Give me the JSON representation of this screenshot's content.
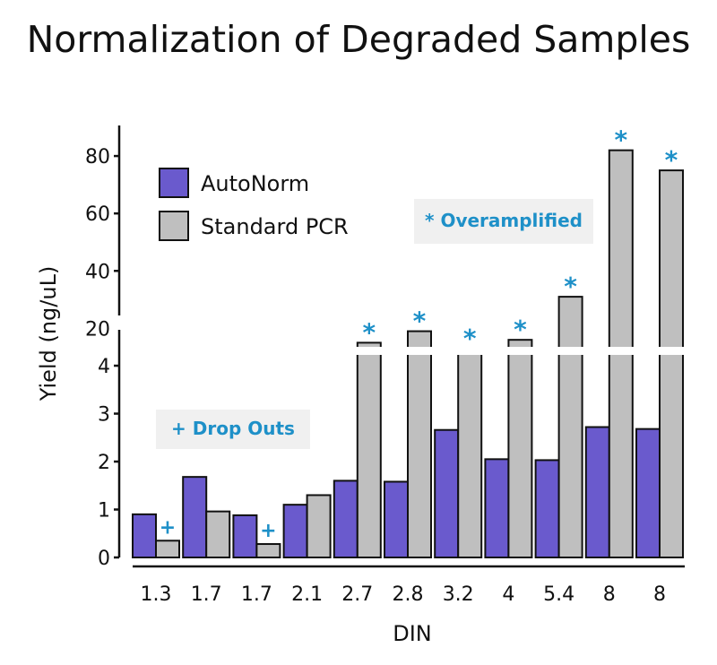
{
  "chart_data": {
    "type": "bar",
    "title": "Normalization of Degraded Samples",
    "xlabel": "DIN",
    "ylabel": "Yield (ng/uL)",
    "categories": [
      "1.3",
      "1.7",
      "1.7",
      "2.1",
      "2.7",
      "2.8",
      "3.2",
      "4",
      "5.4",
      "8",
      "8"
    ],
    "series": [
      {
        "name": "AutoNorm",
        "color": "#6a5acd",
        "values": [
          0.9,
          1.68,
          0.88,
          1.1,
          1.6,
          1.58,
          2.66,
          2.05,
          2.03,
          2.72,
          2.68
        ]
      },
      {
        "name": "Standard PCR",
        "color": "#bfbfbf",
        "values": [
          0.35,
          0.96,
          0.28,
          1.3,
          15,
          19,
          13,
          16,
          31,
          82,
          75
        ]
      }
    ],
    "y_axis": {
      "broken": true,
      "lower_range": [
        0,
        4.3
      ],
      "lower_ticks": [
        0,
        1,
        2,
        3,
        4
      ],
      "upper_range": [
        12,
        95
      ],
      "upper_ticks": [
        20,
        40,
        60,
        80
      ]
    },
    "markers": [
      "",
      "",
      "",
      "",
      "*",
      "*",
      "*",
      "*",
      "*",
      "*",
      "*"
    ],
    "annotations": {
      "overamplified": {
        "text": "* Overamplified",
        "symbol": "*"
      },
      "dropouts": {
        "text": "+ Drop Outs",
        "symbol": "+"
      }
    },
    "dropout_marks": [
      "+",
      "",
      "+",
      "",
      "",
      "",
      "",
      "",
      "",
      "",
      ""
    ],
    "marker_color": "#1e90c8",
    "legend_position": "top-left",
    "grid": false
  }
}
